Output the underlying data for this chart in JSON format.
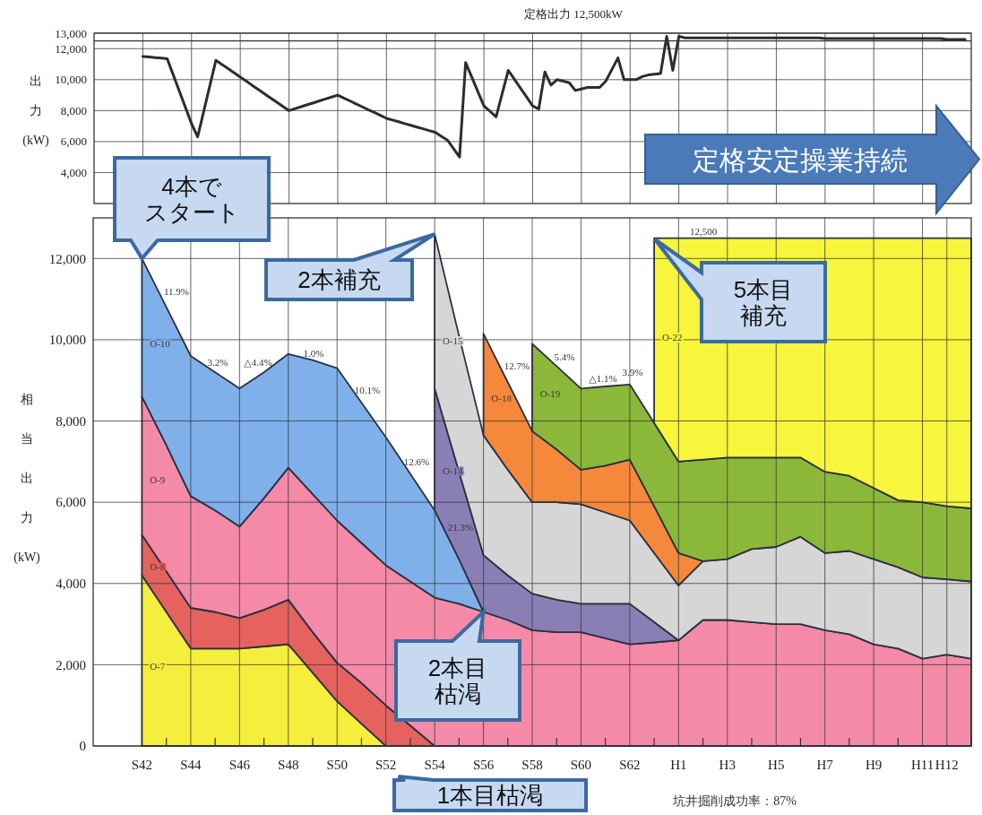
{
  "chart_data": [
    {
      "type": "line",
      "title": "定格出力 12,500kW",
      "ylabel": "出力(kW)",
      "categories": [
        null,
        null,
        null,
        null,
        null,
        null,
        null,
        null,
        null,
        null,
        null,
        null,
        null,
        null,
        null,
        null,
        null,
        null,
        null,
        null,
        null,
        null,
        null,
        null,
        null,
        null,
        null,
        null,
        null,
        null,
        null,
        null,
        null,
        null,
        null,
        null,
        null,
        null,
        null,
        null,
        null,
        null,
        null,
        null,
        null,
        null,
        null,
        null,
        null,
        null,
        null,
        null,
        null,
        null,
        null,
        null,
        null,
        null,
        null,
        null,
        null,
        null,
        null,
        null,
        null,
        null,
        null,
        null,
        null,
        null,
        null,
        null,
        null,
        null,
        null,
        null,
        null,
        null,
        null,
        null,
        null,
        null,
        null,
        null,
        null,
        null,
        null,
        null,
        null,
        null,
        null,
        null,
        null,
        null,
        null,
        null,
        null,
        null,
        null,
        null,
        null,
        null,
        null,
        null,
        null,
        null,
        null,
        null,
        null,
        null,
        null,
        null,
        null,
        null,
        null,
        null,
        null,
        null,
        null,
        null,
        null,
        null,
        null,
        null,
        null,
        null,
        null,
        null,
        null,
        null,
        null,
        null,
        null,
        null,
        null,
        null
      ],
      "series": [
        {
          "color": "#2d2d2d",
          "values": [
            11500,
            11460,
            11420,
            11390,
            11350,
            10300,
            9250,
            8200,
            7150,
            6300,
            7950,
            9600,
            11250,
            10980,
            10710,
            10440,
            10170,
            9900,
            9620,
            9350,
            9080,
            8810,
            8540,
            8270,
            8000,
            8130,
            8250,
            8380,
            8500,
            8630,
            8750,
            8880,
            9000,
            8810,
            8630,
            8440,
            8250,
            8060,
            7880,
            7690,
            7500,
            7390,
            7280,
            7160,
            7050,
            6940,
            6830,
            6710,
            6600,
            6350,
            6100,
            5550,
            5000,
            11100,
            10170,
            9230,
            8300,
            7950,
            7600,
            9100,
            10600,
            10030,
            9450,
            8880,
            8300,
            8100,
            10500,
            9650,
            10000,
            9900,
            9800,
            9300,
            9400,
            9500,
            9500,
            9500,
            9900,
            10650,
            11400,
            10000,
            10000,
            10000,
            10200,
            10300,
            10350,
            10400,
            12800,
            10600,
            12800,
            12700,
            12700,
            12700,
            12700,
            12700,
            12700,
            12700,
            12700,
            12700,
            12700,
            12700,
            12700,
            12700,
            12700,
            12700,
            12700,
            12700,
            12700,
            12700,
            12700,
            12700,
            12700,
            12700,
            12650,
            12650,
            12650,
            12650,
            12650,
            12650,
            12650,
            12650,
            12650,
            12650,
            12650,
            12650,
            12650,
            12650,
            12650,
            12650,
            12650,
            12650,
            12650,
            12650,
            12600,
            12600,
            12600,
            12600
          ]
        }
      ],
      "ylim": [
        2000,
        13000
      ],
      "yticks": [
        {
          "value": 4000,
          "label": "4,000"
        },
        {
          "value": 6000,
          "label": "6,000"
        },
        {
          "value": 8000,
          "label": "8,000"
        },
        {
          "value": 10000,
          "label": "10,000"
        },
        {
          "value": 12000,
          "label": "12,000"
        },
        {
          "value": 13000,
          "label": "13,000"
        }
      ],
      "ref_lines": [
        {
          "axis": "y",
          "value": 12500,
          "color": "#333333"
        }
      ],
      "grid": true,
      "tick_labels": "y",
      "annotations": [
        "定格安定操業持続"
      ]
    },
    {
      "type": "area",
      "stacked": true,
      "ylabel": "相当出力(kW)",
      "categories": [
        "S42",
        null,
        "S44",
        null,
        "S46",
        null,
        "S48",
        null,
        "S50",
        null,
        "S52",
        null,
        "S54",
        null,
        "S56",
        null,
        "S58",
        null,
        "S60",
        null,
        "S62",
        null,
        "H1",
        null,
        "H3",
        null,
        "H5",
        null,
        "H7",
        null,
        "H9",
        null,
        "H11",
        "H12",
        null
      ],
      "series": [
        {
          "name": "O-7",
          "color": "#f6ee3c",
          "values": [
            4200,
            3300,
            2400,
            2400,
            2400,
            2450,
            2500,
            1800,
            1100,
            550,
            0,
            null,
            null,
            null,
            null,
            null,
            null,
            null,
            null,
            null,
            null,
            null,
            null,
            null,
            null,
            null,
            null,
            null,
            null,
            null,
            null,
            null,
            null,
            null,
            null
          ]
        },
        {
          "name": "O-8",
          "color": "#e5625f",
          "values": [
            1000,
            1000,
            1000,
            900,
            750,
            900,
            1100,
            1000,
            950,
            1000,
            1000,
            500,
            0,
            null,
            null,
            null,
            null,
            null,
            null,
            null,
            null,
            null,
            null,
            null,
            null,
            null,
            null,
            null,
            null,
            null,
            null,
            null,
            null,
            null,
            null
          ]
        },
        {
          "name": "O-9",
          "color": "#f48aa8",
          "values": [
            3400,
            3100,
            2750,
            2500,
            2250,
            2750,
            3250,
            3400,
            3500,
            3450,
            3450,
            3550,
            3650,
            3500,
            3300,
            3100,
            2850,
            2800,
            2800,
            2650,
            2500,
            2550,
            2600,
            3100,
            3100,
            3050,
            3000,
            3000,
            2850,
            2750,
            2500,
            2400,
            2150,
            2250,
            2150
          ]
        },
        {
          "name": "O-10",
          "color": "#7fb0ea",
          "values": [
            3400,
            3400,
            3450,
            3400,
            3400,
            3100,
            2800,
            3300,
            3750,
            3450,
            3150,
            2650,
            2150,
            1100,
            0,
            null,
            null,
            null,
            null,
            null,
            null,
            null,
            null,
            null,
            null,
            null,
            null,
            null,
            null,
            null,
            null,
            null,
            null,
            null,
            null
          ]
        },
        {
          "name": "O-14",
          "color": "#8a7fb5",
          "values": [
            null,
            null,
            null,
            null,
            null,
            null,
            null,
            null,
            null,
            null,
            null,
            null,
            3000,
            2150,
            1400,
            1100,
            900,
            800,
            700,
            850,
            1000,
            500,
            0,
            null,
            null,
            null,
            null,
            null,
            null,
            null,
            null,
            null,
            null,
            null,
            null
          ]
        },
        {
          "name": "O-15",
          "color": "#d6d6d6",
          "values": [
            null,
            null,
            null,
            null,
            null,
            null,
            null,
            null,
            null,
            null,
            null,
            null,
            3800,
            3350,
            2950,
            2600,
            2250,
            2400,
            2450,
            2250,
            2050,
            1700,
            1350,
            1450,
            1500,
            1800,
            1900,
            2150,
            1900,
            2050,
            2100,
            2000,
            2000,
            1850,
            1900
          ]
        },
        {
          "name": "O-18",
          "color": "#f5883a",
          "values": [
            null,
            null,
            null,
            null,
            null,
            null,
            null,
            null,
            null,
            null,
            null,
            null,
            null,
            null,
            2500,
            2150,
            1750,
            1300,
            850,
            1150,
            1500,
            1150,
            800,
            0,
            null,
            null,
            null,
            null,
            null,
            null,
            null,
            null,
            null,
            null,
            null
          ]
        },
        {
          "name": "O-19",
          "color": "#8cb83a",
          "values": [
            null,
            null,
            null,
            null,
            null,
            null,
            null,
            null,
            null,
            null,
            null,
            null,
            null,
            null,
            null,
            null,
            2150,
            2050,
            2000,
            1950,
            1850,
            2050,
            2250,
            2500,
            2500,
            2250,
            2200,
            1950,
            2000,
            1850,
            1750,
            1650,
            1850,
            1800,
            1800
          ]
        },
        {
          "name": "O-22",
          "color": "#f7f53c",
          "values": [
            null,
            null,
            null,
            null,
            null,
            null,
            null,
            null,
            null,
            null,
            null,
            null,
            null,
            null,
            null,
            null,
            null,
            null,
            null,
            null,
            null,
            4550,
            5500,
            5450,
            5400,
            5400,
            5400,
            5400,
            5750,
            5850,
            6150,
            6450,
            6500,
            6600,
            6650
          ]
        }
      ],
      "ylim": [
        0,
        13000
      ],
      "yticks": [
        0,
        {
          "value": 2000,
          "label": "2,000"
        },
        {
          "value": 4000,
          "label": "4,000"
        },
        {
          "value": 6000,
          "label": "6,000"
        },
        {
          "value": 8000,
          "label": "8,000"
        },
        {
          "value": 10000,
          "label": "10,000"
        },
        {
          "value": 12000,
          "label": "12,000"
        }
      ],
      "grid": true,
      "annotations": [
        "11.9%",
        "3.2%",
        "△4.4%",
        "1.0%",
        "10.1%",
        "12.6%",
        "21.3%",
        "12.7%",
        "5.4%",
        "△1.1%",
        "3.9%",
        "12,500",
        {
          "text": "4本でスタート",
          "x": "S42",
          "y": 12000
        },
        {
          "text": "2本補充",
          "x": "S54",
          "y": 12600
        },
        "5本目補充",
        {
          "text": "2本目枯渇",
          "x": "S56",
          "y": 3300
        },
        {
          "text": "1本目枯渇",
          "x": "S52",
          "y": 0
        },
        "坑井掘削成功率：87%"
      ]
    }
  ]
}
